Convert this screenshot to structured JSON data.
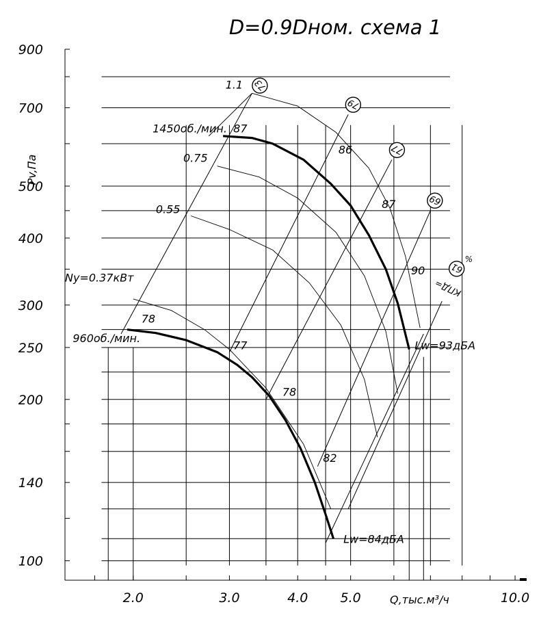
{
  "chart_data": {
    "type": "line",
    "title": "D=0.9Dном. схема 1",
    "xlabel": "Q,тыс.м³/ч",
    "ylabel": "Pv,Па",
    "x_scale": "log",
    "y_scale": "log",
    "xlim": [
      1.5,
      10.5
    ],
    "ylim": [
      92,
      900
    ],
    "x_ticks": [
      "2.0",
      "3.0",
      "4.0",
      "5.0",
      "10.0"
    ],
    "y_ticks": [
      "900",
      "700",
      "500",
      "400",
      "300",
      "250",
      "200",
      "140",
      "100"
    ],
    "grid": true,
    "series": [
      {
        "name": "1450об./мин.",
        "curve_type": "speed",
        "rpm": 1450,
        "line_weight": "thick",
        "points": [
          [
            2.92,
            620
          ],
          [
            3.3,
            615
          ],
          [
            3.6,
            600
          ],
          [
            4.1,
            560
          ],
          [
            4.6,
            505
          ],
          [
            5.0,
            460
          ],
          [
            5.4,
            405
          ],
          [
            5.8,
            350
          ],
          [
            6.1,
            302
          ],
          [
            6.4,
            248
          ]
        ]
      },
      {
        "name": "960об./мин.",
        "curve_type": "speed",
        "rpm": 960,
        "line_weight": "thick",
        "points": [
          [
            1.95,
            270
          ],
          [
            2.2,
            266
          ],
          [
            2.5,
            258
          ],
          [
            2.85,
            245
          ],
          [
            3.1,
            232
          ],
          [
            3.3,
            220
          ],
          [
            3.55,
            203
          ],
          [
            3.8,
            183
          ],
          [
            4.05,
            162
          ],
          [
            4.3,
            140
          ],
          [
            4.5,
            122
          ],
          [
            4.65,
            110
          ]
        ]
      },
      {
        "name": "1.1",
        "curve_type": "power",
        "power_kW": 1.1,
        "line_weight": "thin",
        "points": [
          [
            3.3,
            745
          ],
          [
            4.0,
            705
          ],
          [
            4.7,
            630
          ],
          [
            5.4,
            540
          ],
          [
            5.9,
            455
          ],
          [
            6.3,
            370
          ],
          [
            6.7,
            272
          ]
        ]
      },
      {
        "name": "0.75",
        "curve_type": "power",
        "power_kW": 0.75,
        "line_weight": "thin",
        "points": [
          [
            2.85,
            545
          ],
          [
            3.4,
            520
          ],
          [
            4.0,
            475
          ],
          [
            4.7,
            410
          ],
          [
            5.3,
            340
          ],
          [
            5.8,
            268
          ],
          [
            6.1,
            205
          ]
        ]
      },
      {
        "name": "0.55",
        "curve_type": "power",
        "power_kW": 0.55,
        "line_weight": "thin",
        "points": [
          [
            2.55,
            440
          ],
          [
            3.0,
            415
          ],
          [
            3.6,
            380
          ],
          [
            4.2,
            330
          ],
          [
            4.8,
            275
          ],
          [
            5.3,
            218
          ],
          [
            5.6,
            170
          ]
        ]
      },
      {
        "name": "Ny=0.37кВт",
        "curve_type": "power",
        "power_kW": 0.37,
        "line_weight": "thin",
        "points": [
          [
            2.0,
            308
          ],
          [
            2.35,
            293
          ],
          [
            2.7,
            270
          ],
          [
            3.0,
            248
          ],
          [
            3.5,
            210
          ],
          [
            4.1,
            165
          ],
          [
            4.6,
            125
          ]
        ]
      }
    ],
    "efficiency_lines": [
      {
        "label": "73",
        "percent": 73,
        "points": [
          [
            2.75,
            620
          ],
          [
            3.3,
            745
          ]
        ]
      },
      {
        "label": "79",
        "percent": 79,
        "points": [
          [
            3.0,
            245
          ],
          [
            4.95,
            680
          ]
        ]
      },
      {
        "label": "77",
        "percent": 77,
        "points": [
          [
            3.5,
            200
          ],
          [
            5.95,
            560
          ]
        ]
      },
      {
        "label": "69",
        "percent": 69,
        "points": [
          [
            4.35,
            150
          ],
          [
            7.0,
            450
          ]
        ]
      },
      {
        "label": "КПД=61%",
        "percent": 61,
        "points": [
          [
            4.95,
            125
          ],
          [
            7.35,
            305
          ]
        ]
      }
    ],
    "system_lines": [
      {
        "points": [
          [
            1.9,
            265
          ],
          [
            3.3,
            745
          ]
        ]
      },
      {
        "points": [
          [
            4.5,
            108
          ],
          [
            6.8,
            265
          ]
        ]
      }
    ],
    "point_labels": [
      {
        "text": "87",
        "x": 3.05,
        "y": 630
      },
      {
        "text": "86",
        "x": 4.75,
        "y": 575
      },
      {
        "text": "87",
        "x": 5.7,
        "y": 455
      },
      {
        "text": "90",
        "x": 6.45,
        "y": 342
      },
      {
        "text": "78",
        "x": 2.07,
        "y": 278
      },
      {
        "text": "77",
        "x": 3.05,
        "y": 248
      },
      {
        "text": "78",
        "x": 3.75,
        "y": 203
      },
      {
        "text": "82",
        "x": 4.45,
        "y": 153
      },
      {
        "text": "Lw=93дБА",
        "x": 6.55,
        "y": 248
      },
      {
        "text": "Lw=84дБА",
        "x": 4.85,
        "y": 108
      },
      {
        "text": "1450об./мин.",
        "x": 2.17,
        "y": 630
      },
      {
        "text": "960об./мин.",
        "x": 1.55,
        "y": 256
      },
      {
        "text": "1.1",
        "x": 2.95,
        "y": 760
      },
      {
        "text": "0.75",
        "x": 2.47,
        "y": 555
      },
      {
        "text": "0.55",
        "x": 2.2,
        "y": 445
      },
      {
        "text": "Ny=0.37кВт",
        "x": 1.5,
        "y": 332
      }
    ]
  },
  "texts": {
    "title": "D=0.9Dном. схема 1",
    "ylabel": "Pv,Па",
    "xlabel": "Q,тыс.м³/ч",
    "eff_prefix": "КПД=",
    "eff_suffix": "%"
  }
}
